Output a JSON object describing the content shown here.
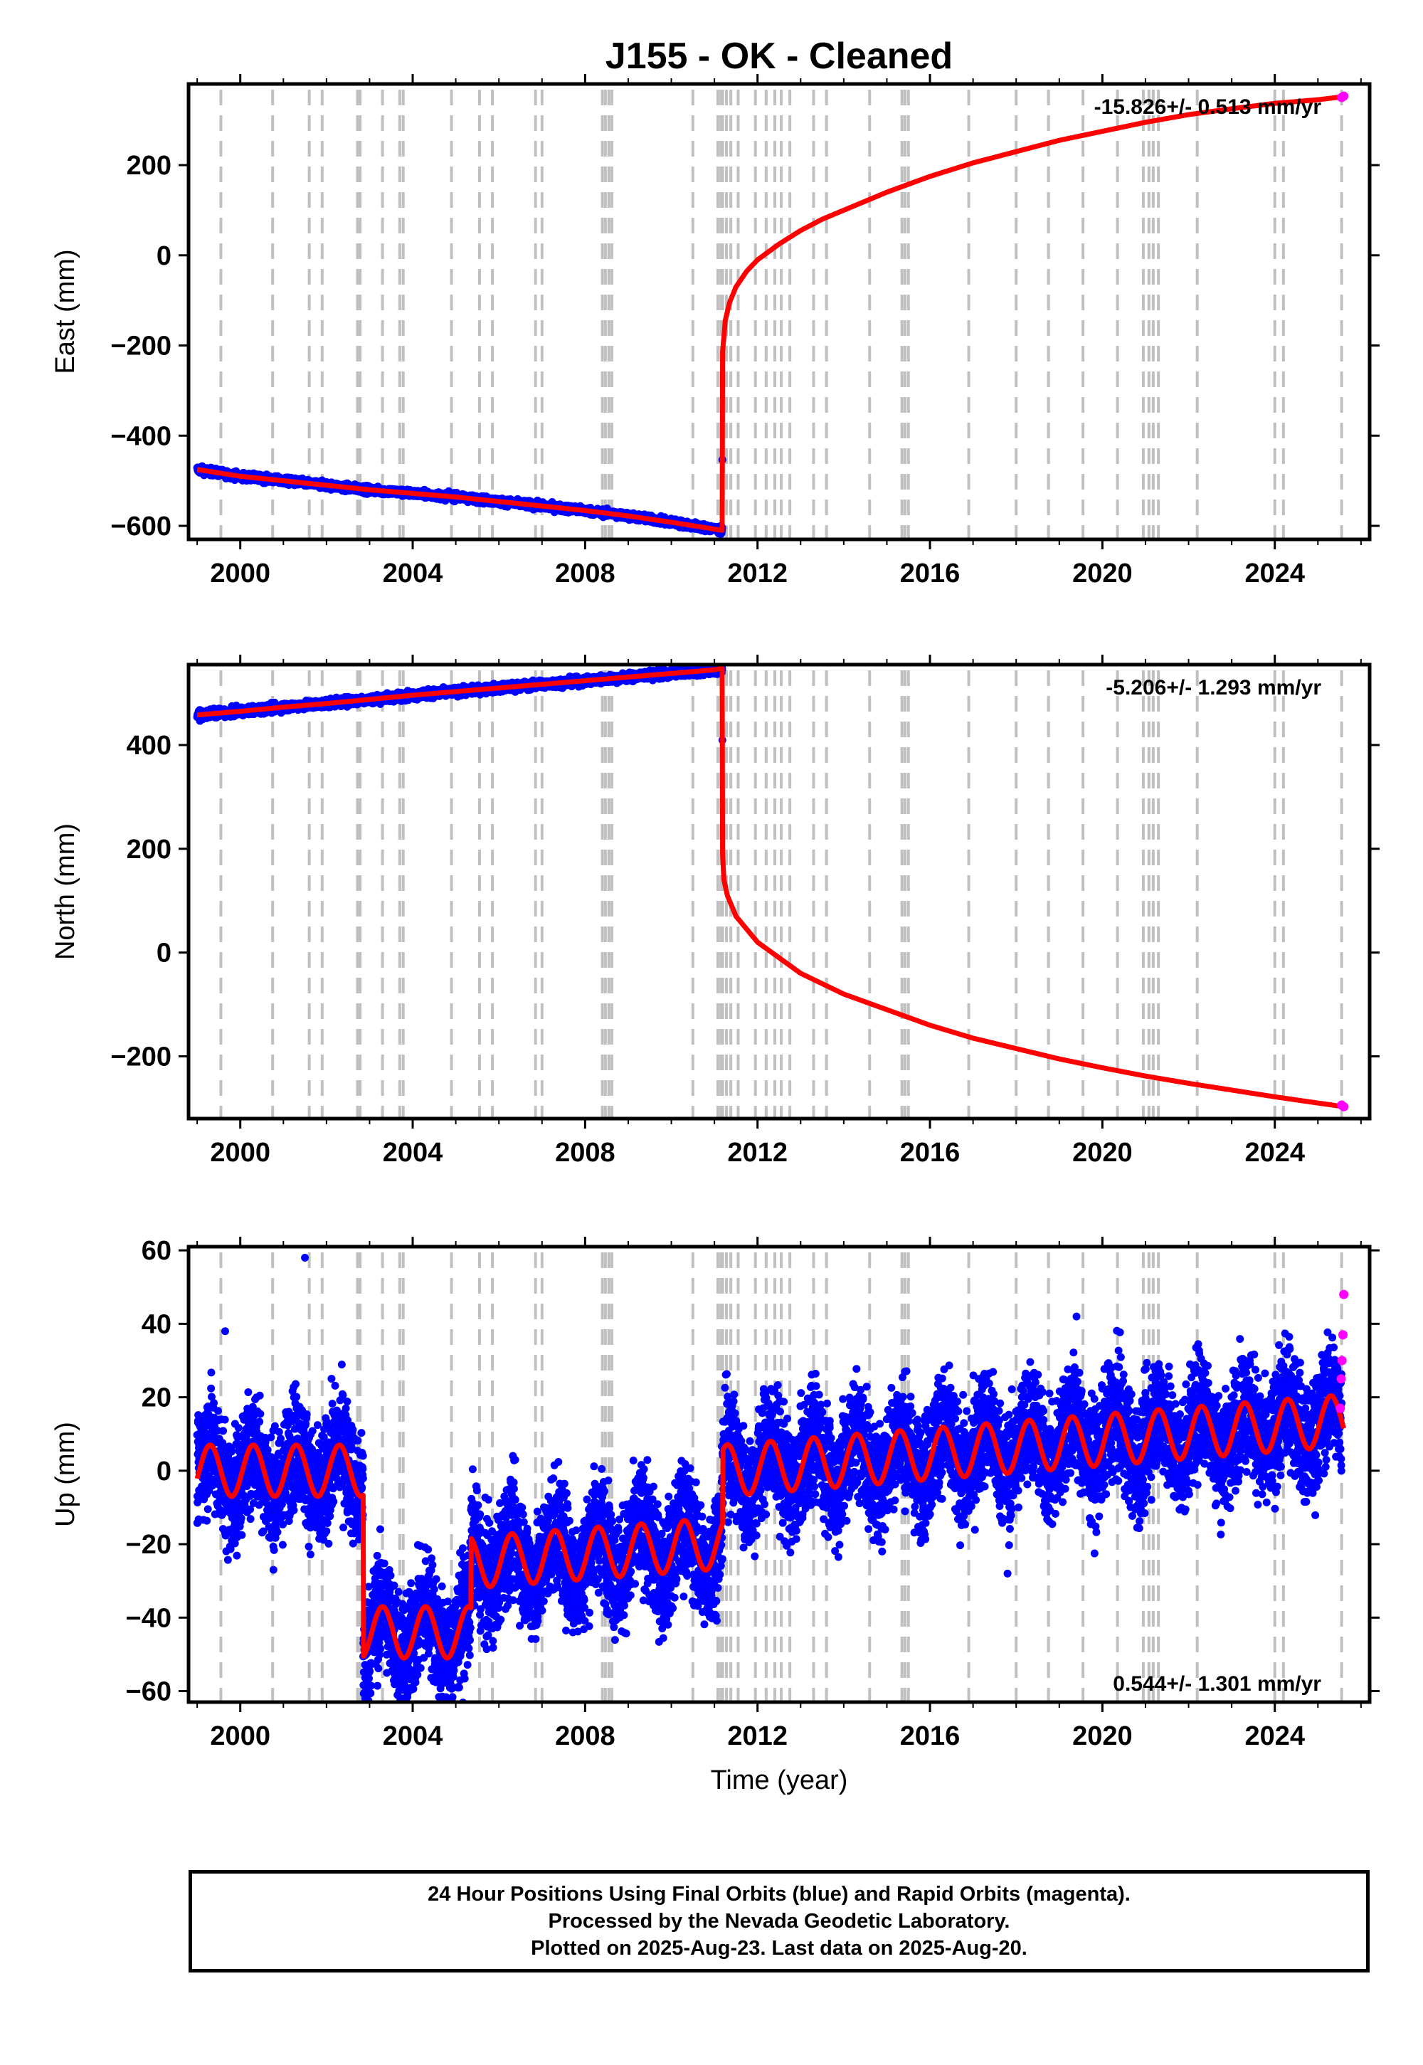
{
  "title": "J155  - OK - Cleaned",
  "xlabel": "Time (year)",
  "footer": [
    "24 Hour Positions Using Final Orbits (blue) and Rapid Orbits (magenta).",
    "Processed by the Nevada Geodetic Laboratory.",
    "Plotted on 2025-Aug-23. Last data on 2025-Aug-20."
  ],
  "colors": {
    "final_orbits": "#0000ff",
    "rapid_orbits": "#ff00ff",
    "model": "#ff0000",
    "event_lines": "#c0c0c0"
  },
  "chart_data": [
    {
      "type": "scatter",
      "panel": "east",
      "ylabel": "East (mm)",
      "rate_label": "-15.826+/- 0.513 mm/yr",
      "rate_position": "top-right",
      "xlim": [
        1998.8,
        2026.2
      ],
      "ylim": [
        -630,
        380
      ],
      "xticks": [
        2000,
        2004,
        2008,
        2012,
        2016,
        2020,
        2024
      ],
      "yticks": [
        -600,
        -400,
        -200,
        0,
        200
      ],
      "ytick_labels": [
        "−600",
        "−400",
        "−200",
        "0",
        "200"
      ],
      "model_curve": {
        "x": [
          1999.0,
          2000.0,
          2001.0,
          2002.0,
          2003.0,
          2004.0,
          2005.0,
          2006.0,
          2007.0,
          2008.0,
          2009.0,
          2010.0,
          2011.18,
          2011.19,
          2011.22,
          2011.25,
          2011.35,
          2011.5,
          2011.75,
          2012.0,
          2012.5,
          2013.0,
          2013.5,
          2014.0,
          2015.0,
          2016.0,
          2017.0,
          2018.0,
          2019.0,
          2020.0,
          2021.0,
          2022.0,
          2023.0,
          2024.0,
          2025.0,
          2025.6
        ],
        "y": [
          -475,
          -490,
          -500,
          -510,
          -520,
          -528,
          -536,
          -546,
          -556,
          -566,
          -578,
          -592,
          -610,
          -215,
          -180,
          -145,
          -105,
          -70,
          -35,
          -10,
          25,
          55,
          80,
          100,
          140,
          175,
          205,
          230,
          255,
          275,
          295,
          312,
          325,
          337,
          345,
          352
        ]
      },
      "rapid_points": {
        "x": [
          2025.55,
          2025.6
        ],
        "y": [
          350,
          353
        ]
      }
    },
    {
      "type": "scatter",
      "panel": "north",
      "ylabel": "North (mm)",
      "rate_label": "-5.206+/- 1.293 mm/yr",
      "rate_position": "top-right",
      "xlim": [
        1998.8,
        2026.2
      ],
      "ylim": [
        -320,
        555
      ],
      "xticks": [
        2000,
        2004,
        2008,
        2012,
        2016,
        2020,
        2024
      ],
      "yticks": [
        -200,
        0,
        200,
        400
      ],
      "ytick_labels": [
        "−200",
        "0",
        "200",
        "400"
      ],
      "model_curve": {
        "x": [
          1999.0,
          2000.0,
          2001.0,
          2002.0,
          2003.0,
          2004.0,
          2005.0,
          2006.0,
          2007.0,
          2008.0,
          2009.0,
          2010.0,
          2011.0,
          2011.18,
          2011.19,
          2011.22,
          2011.3,
          2011.5,
          2012.0,
          2012.5,
          2013.0,
          2014.0,
          2015.0,
          2016.0,
          2017.0,
          2018.0,
          2019.0,
          2020.0,
          2021.0,
          2022.0,
          2023.0,
          2024.0,
          2025.0,
          2025.6
        ],
        "y": [
          458,
          465,
          473,
          480,
          488,
          496,
          503,
          510,
          517,
          524,
          531,
          538,
          545,
          548,
          190,
          140,
          110,
          70,
          20,
          -10,
          -40,
          -80,
          -110,
          -140,
          -165,
          -185,
          -205,
          -222,
          -238,
          -252,
          -265,
          -278,
          -290,
          -297
        ]
      },
      "rapid_points": {
        "x": [
          2025.55,
          2025.6
        ],
        "y": [
          -294,
          -297
        ]
      }
    },
    {
      "type": "scatter",
      "panel": "up",
      "ylabel": "Up (mm)",
      "rate_label": "0.544+/- 1.301 mm/yr",
      "rate_position": "bottom-right",
      "xlim": [
        1998.8,
        2026.2
      ],
      "ylim": [
        -63,
        61
      ],
      "xticks": [
        2000,
        2004,
        2008,
        2012,
        2016,
        2020,
        2024
      ],
      "yticks": [
        -60,
        -40,
        -20,
        0,
        20,
        40,
        60
      ],
      "ytick_labels": [
        "−60",
        "−40",
        "−20",
        "0",
        "20",
        "40",
        "60"
      ],
      "model_segments": [
        {
          "x0": 1999.0,
          "x1": 2002.85,
          "offset": 0,
          "slope": 0
        },
        {
          "x0": 2002.85,
          "x1": 2005.35,
          "offset": -44,
          "slope": 0
        },
        {
          "x0": 2005.35,
          "x1": 2011.19,
          "offset": -25,
          "slope": 0.9
        },
        {
          "x0": 2011.19,
          "x1": 2025.6,
          "offset": 0,
          "slope": 0.95
        }
      ],
      "seasonal_amplitude_mm": 7,
      "scatter_spread_mm": 8,
      "outliers": {
        "x": [
          2001.5,
          1999.65,
          2019.4,
          2017.8
        ],
        "y": [
          58,
          38,
          42,
          -28
        ]
      },
      "rapid_points": {
        "x": [
          2025.52,
          2025.54,
          2025.56,
          2025.58,
          2025.6
        ],
        "y": [
          17,
          25,
          30,
          37,
          48
        ]
      }
    }
  ],
  "event_lines_x": [
    1999.55,
    2000.75,
    2001.6,
    2001.9,
    2002.72,
    2002.78,
    2003.3,
    2003.7,
    2003.78,
    2004.9,
    2005.55,
    2005.85,
    2006.85,
    2007.0,
    2008.4,
    2008.47,
    2008.55,
    2008.62,
    2010.5,
    2011.08,
    2011.15,
    2011.19,
    2011.28,
    2011.38,
    2011.55,
    2011.95,
    2012.2,
    2012.4,
    2012.55,
    2012.75,
    2013.3,
    2013.6,
    2014.6,
    2015.35,
    2015.42,
    2015.5,
    2016.9,
    2018.0,
    2018.75,
    2019.55,
    2020.35,
    2020.95,
    2021.08,
    2021.18,
    2021.3,
    2022.2,
    2024.0,
    2024.2,
    2025.55
  ]
}
